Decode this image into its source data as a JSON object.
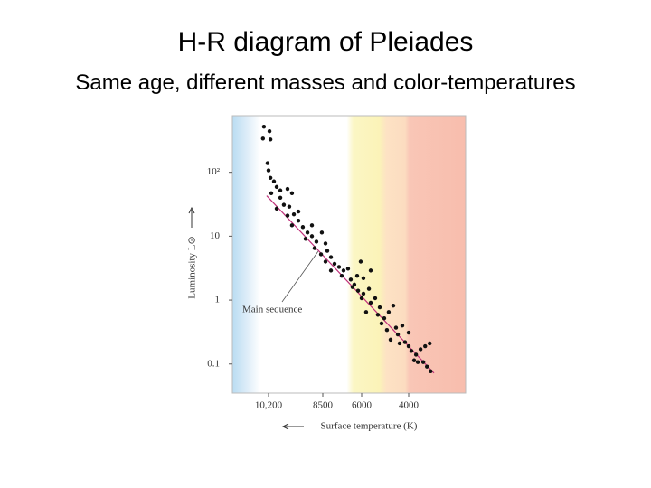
{
  "chart_data": {
    "type": "scatter",
    "title": "H-R diagram of Pleiades",
    "subtitle": "Same age, different masses and color-temperatures",
    "x_label": "Surface temperature (K)",
    "y_label": "Luminosity L⊙",
    "annotation": "Main sequence",
    "log_y": true,
    "color": "#111111",
    "xlim": [
      11300,
      1600
    ],
    "xticks": [
      {
        "value": 10200,
        "label": "10,200"
      },
      8500,
      6000,
      4000
    ],
    "ylim": [
      0.035,
      770
    ],
    "yticks": [
      0.1,
      1,
      10,
      {
        "value": 100,
        "label": "10²"
      }
    ],
    "x": [
      10340,
      10170,
      10370,
      10140,
      10230,
      10200,
      10140,
      10030,
      9945,
      9830,
      10115,
      9605,
      9465,
      9830,
      9720,
      9550,
      9945,
      9605,
      9405,
      9265,
      9465,
      9125,
      8980,
      8840,
      9040,
      8700,
      8530,
      8755,
      8555,
      8210,
      7975,
      8325,
      7745,
      7455,
      7975,
      7165,
      6875,
      7280,
      6700,
      6290,
      6060,
      5925,
      6585,
      6230,
      5925,
      5690,
      6000,
      5615,
      5425,
      5230,
      5810,
      5310,
      5040,
      5155,
      4850,
      4655,
      4540,
      4925,
      4460,
      4270,
      4770,
      4155,
      4000,
      3885,
      4385,
      3690,
      3500,
      3770,
      3305,
      3115,
      3385,
      3230,
      3615,
      3075,
      4000,
      5615,
      8325,
      9265,
      8840,
      6470
    ],
    "values": [
      518,
      440,
      338,
      327,
      139,
      107,
      82,
      72,
      59,
      52,
      47,
      55,
      47,
      40,
      31,
      29,
      27,
      21,
      22,
      17.5,
      14.8,
      13.9,
      11.4,
      10,
      9.1,
      8.2,
      11.4,
      6.5,
      5.2,
      5.9,
      4.7,
      4.0,
      3.7,
      3.3,
      2.9,
      2.9,
      3.1,
      2.4,
      2.1,
      2.4,
      4.0,
      2.2,
      1.6,
      1.4,
      1.26,
      1.5,
      1.07,
      0.91,
      1.07,
      0.77,
      0.65,
      0.59,
      0.52,
      0.43,
      0.65,
      0.82,
      0.37,
      0.34,
      0.29,
      0.4,
      0.24,
      0.22,
      0.19,
      0.16,
      0.21,
      0.14,
      0.17,
      0.114,
      0.19,
      0.21,
      0.107,
      0.091,
      0.107,
      0.077,
      0.31,
      2.9,
      7.7,
      24.3,
      14.8,
      1.75
    ],
    "main_sequence": {
      "color": "#c0307a",
      "x": [
        10257,
        2933
      ],
      "values": [
        43,
        0.072
      ]
    }
  }
}
